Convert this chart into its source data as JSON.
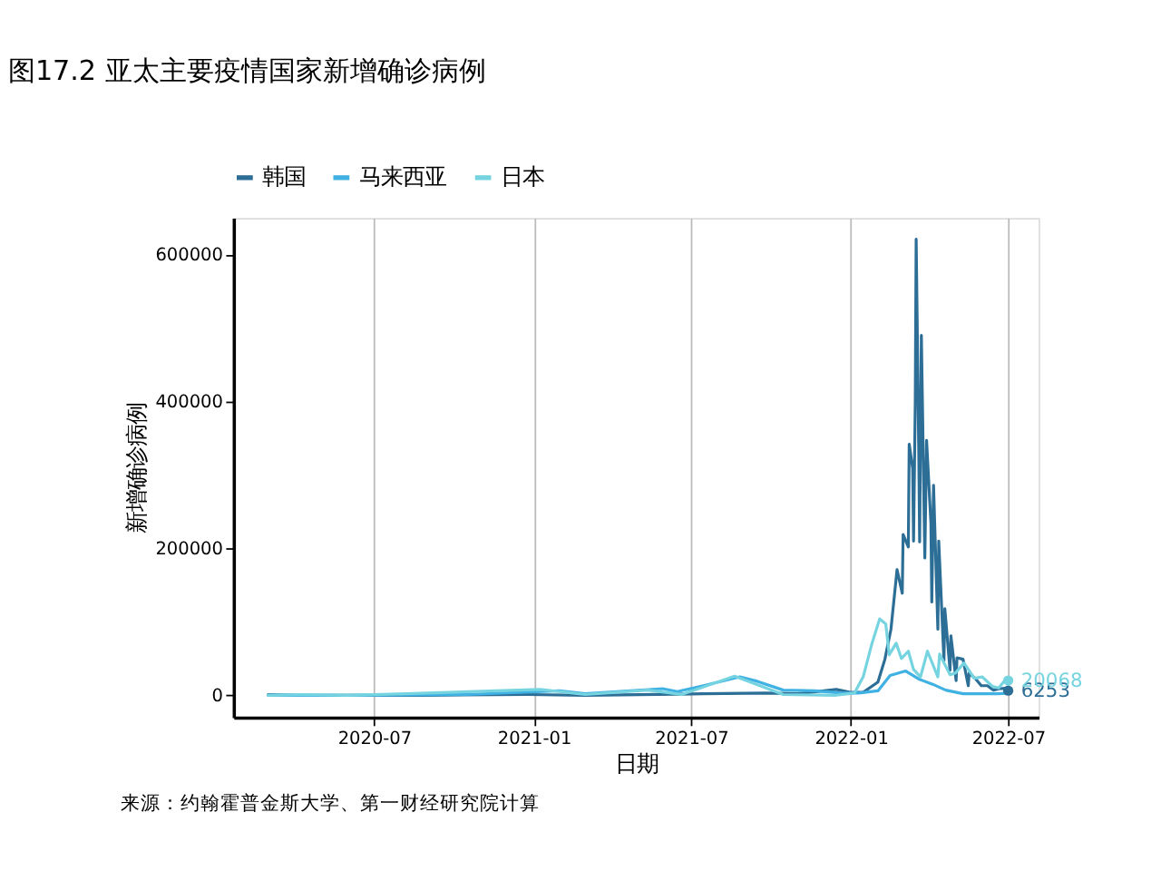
{
  "chart_data": {
    "type": "line",
    "title": "图17.2 亚太主要疫情国家新增确诊病例",
    "xlabel": "日期",
    "ylabel": "新增确诊病例",
    "series": [
      {
        "name": "韩国",
        "color": "#2c6e96",
        "x": [
          "2020-03-01",
          "2020-04-10",
          "2020-08-27",
          "2020-12-25",
          "2021-03-01",
          "2021-07-15",
          "2021-09-25",
          "2021-11-01",
          "2021-12-15",
          "2021-12-31",
          "2022-01-15",
          "2022-01-26",
          "2022-02-01",
          "2022-02-09",
          "2022-02-16",
          "2022-02-23",
          "2022-03-01",
          "2022-03-02",
          "2022-03-08",
          "2022-03-09",
          "2022-03-13",
          "2022-03-14",
          "2022-03-16",
          "2022-03-17",
          "2022-03-20",
          "2022-03-21",
          "2022-03-23",
          "2022-03-27",
          "2022-03-29",
          "2022-04-03",
          "2022-04-04",
          "2022-04-06",
          "2022-04-11",
          "2022-04-12",
          "2022-04-18",
          "2022-04-19",
          "2022-04-25",
          "2022-04-26",
          "2022-05-02",
          "2022-05-03",
          "2022-05-10",
          "2022-05-16",
          "2022-05-17",
          "2022-05-24",
          "2022-05-31",
          "2022-06-07",
          "2022-06-14",
          "2022-06-21",
          "2022-06-28",
          "2022-07-01"
        ],
        "values": [
          1000,
          0,
          0,
          1000,
          0,
          2000,
          3000,
          2000,
          8000,
          4000,
          4000,
          13000,
          18000,
          49000,
          90000,
          171000,
          139000,
          219000,
          202000,
          342000,
          309000,
          210000,
          400000,
          621000,
          334000,
          209000,
          490000,
          187000,
          347000,
          234000,
          127000,
          286000,
          90000,
          210000,
          47000,
          118000,
          34000,
          81000,
          20000,
          51000,
          49000,
          13000,
          30000,
          23000,
          13000,
          13000,
          7000,
          9000,
          9500,
          6253
        ]
      },
      {
        "name": "马来西亚",
        "color": "#3fb1e3",
        "x": [
          "2020-03-01",
          "2020-03-20",
          "2020-06-01",
          "2020-10-15",
          "2021-01-30",
          "2021-03-01",
          "2021-05-29",
          "2021-06-15",
          "2021-07-15",
          "2021-08-26",
          "2021-09-15",
          "2021-10-15",
          "2021-11-20",
          "2021-12-20",
          "2022-01-10",
          "2022-02-01",
          "2022-02-15",
          "2022-03-05",
          "2022-03-20",
          "2022-04-05",
          "2022-04-20",
          "2022-05-10",
          "2022-06-01",
          "2022-06-20",
          "2022-07-01"
        ],
        "values": [
          0,
          0,
          0,
          1000,
          6000,
          2000,
          9000,
          5000,
          13000,
          25000,
          19000,
          7000,
          6000,
          3000,
          3000,
          6000,
          27000,
          33000,
          22000,
          15000,
          7000,
          2000,
          2000,
          2000,
          3000
        ]
      },
      {
        "name": "日本",
        "color": "#76d4e0",
        "x": [
          "2020-03-01",
          "2020-04-11",
          "2020-06-01",
          "2020-08-07",
          "2021-01-08",
          "2021-03-01",
          "2021-05-12",
          "2021-06-20",
          "2021-08-20",
          "2021-10-15",
          "2021-12-15",
          "2022-01-05",
          "2022-01-15",
          "2022-01-25",
          "2022-02-03",
          "2022-02-10",
          "2022-02-14",
          "2022-02-22",
          "2022-02-28",
          "2022-03-08",
          "2022-03-14",
          "2022-03-22",
          "2022-03-30",
          "2022-04-11",
          "2022-04-13",
          "2022-04-25",
          "2022-05-01",
          "2022-05-11",
          "2022-05-23",
          "2022-06-01",
          "2022-06-13",
          "2022-06-20",
          "2022-06-29",
          "2022-07-01"
        ],
        "values": [
          0,
          1000,
          0,
          2000,
          8000,
          1000,
          7000,
          1000,
          26000,
          1000,
          0,
          3000,
          25000,
          70000,
          104000,
          97000,
          55000,
          71000,
          50000,
          60000,
          35000,
          25000,
          60000,
          25000,
          56000,
          28000,
          30000,
          44000,
          23000,
          25000,
          12000,
          10000,
          23000,
          20068
        ]
      }
    ],
    "annotations": [
      {
        "text": "6253",
        "x": "2022-07-01",
        "y": 6253
      },
      {
        "text": "20068",
        "x": "2022-07-01",
        "y": 20068
      },
      "来源：约翰霍普金斯大学、第一财经研究院计算"
    ],
    "xlim": [
      "2020-01-21",
      "2022-08-05"
    ],
    "xticks": [
      "2020-07",
      "2021-01",
      "2021-07",
      "2022-01",
      "2022-07"
    ],
    "ylim": [
      -30000,
      650000
    ],
    "yticks": [
      0,
      200000,
      400000,
      600000
    ],
    "grid": "x",
    "legend": "top",
    "marker": "none",
    "line_style": "solid"
  }
}
